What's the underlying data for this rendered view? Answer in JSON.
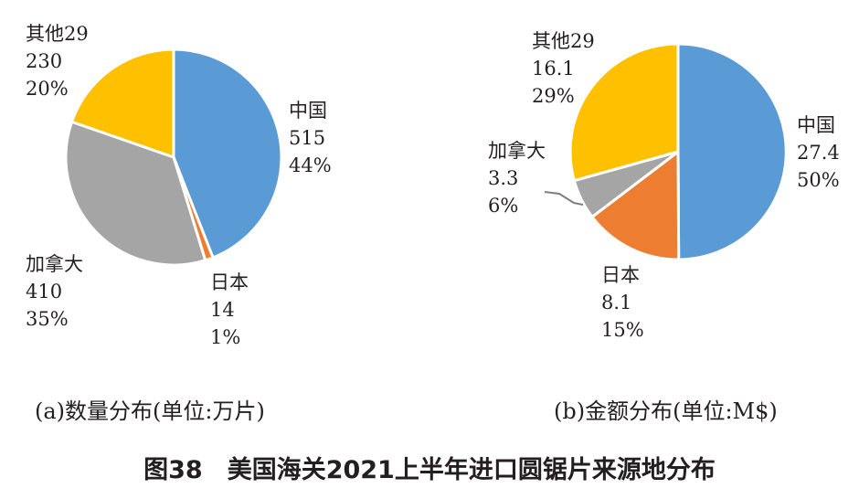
{
  "figure": {
    "title": "图38　美国海关2021上半年进口圆锯片来源地分布"
  },
  "chart_data": [
    {
      "type": "pie",
      "caption": "(a)数量分布(单位:万片)",
      "slices": [
        {
          "label": "中国",
          "value": "515",
          "percent": "44%",
          "num": 515,
          "color": "#5b9bd5"
        },
        {
          "label": "日本",
          "value": "14",
          "percent": "1%",
          "num": 14,
          "color": "#ed7d31"
        },
        {
          "label": "加拿大",
          "value": "410",
          "percent": "35%",
          "num": 410,
          "color": "#a5a5a5"
        },
        {
          "label": "其他29",
          "value": "230",
          "percent": "20%",
          "num": 230,
          "color": "#ffc000"
        }
      ]
    },
    {
      "type": "pie",
      "caption": "(b)金额分布(单位:M$)",
      "slices": [
        {
          "label": "中国",
          "value": "27.4",
          "percent": "50%",
          "num": 27.4,
          "color": "#5b9bd5"
        },
        {
          "label": "日本",
          "value": "8.1",
          "percent": "15%",
          "num": 8.1,
          "color": "#ed7d31"
        },
        {
          "label": "加拿大",
          "value": "3.3",
          "percent": "6%",
          "num": 3.3,
          "color": "#a5a5a5"
        },
        {
          "label": "其他29",
          "value": "16.1",
          "percent": "29%",
          "num": 16.1,
          "color": "#ffc000"
        }
      ]
    }
  ]
}
